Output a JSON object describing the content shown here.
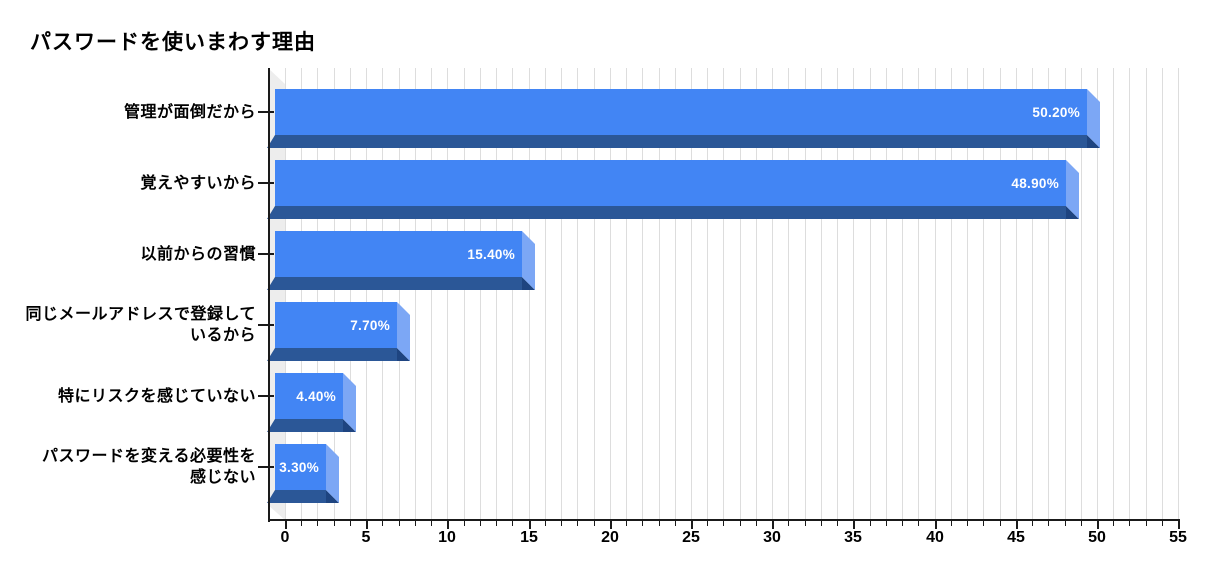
{
  "title": "パスワードを使いまわす理由",
  "colors": {
    "bar_face": "#4285F4",
    "bar_end_cap": "#7CA7F5",
    "bar_bottom": "#2B5797",
    "bar_bottom_shadow": "#1E4480",
    "wall": "#EDEDED",
    "gridline": "#DDDDDD",
    "axis": "#1A1A1A",
    "value_text": "#FFFFFF",
    "label_text": "#000000",
    "background": "#FFFFFF"
  },
  "chart_data": {
    "type": "bar",
    "orientation": "horizontal",
    "style_3d": true,
    "title": "パスワードを使いまわす理由",
    "categories": [
      "管理が面倒だから",
      "覚えやすいから",
      "以前からの習慣",
      "同じメールアドレスで登録しているから",
      "特にリスクを感じていない",
      "パスワードを変える必要性を感じない"
    ],
    "category_lines": [
      [
        "管理が面倒だから"
      ],
      [
        "覚えやすいから"
      ],
      [
        "以前からの習慣"
      ],
      [
        "同じメールアドレスで登録して",
        "いるから"
      ],
      [
        "特にリスクを感じていない"
      ],
      [
        "パスワードを変える必要性を",
        "感じない"
      ]
    ],
    "values": [
      50.2,
      48.9,
      15.4,
      7.7,
      4.4,
      3.3
    ],
    "value_labels": [
      "50.20%",
      "48.90%",
      "15.40%",
      "7.70%",
      "4.40%",
      "3.30%"
    ],
    "xlabel": "",
    "ylabel": "",
    "xlim": [
      0,
      55
    ],
    "x_ticks": [
      0,
      5,
      10,
      15,
      20,
      25,
      30,
      35,
      40,
      45,
      50,
      55
    ],
    "x_tick_labels": [
      "0",
      "5",
      "10",
      "15",
      "20",
      "25",
      "30",
      "35",
      "40",
      "45",
      "50",
      "55"
    ],
    "minor_tick_step": 1,
    "grid": true,
    "legend": false
  }
}
